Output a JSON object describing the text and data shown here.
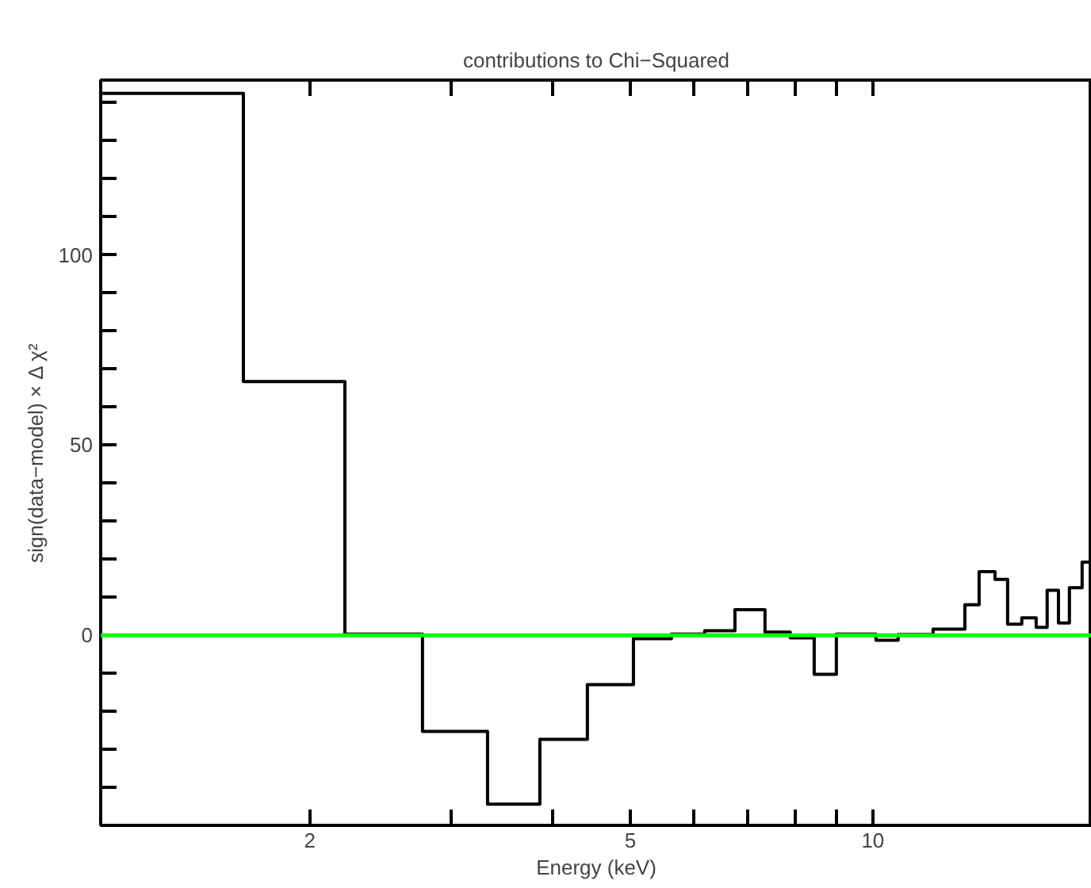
{
  "chart_data": {
    "type": "histogram",
    "title": "contributions to Chi−Squared",
    "xlabel": "Energy (keV)",
    "ylabel": "sign(data−model) × Δ χ²",
    "bins": [
      1.1,
      1.654,
      2.211,
      2.76,
      3.324,
      3.86,
      4.422,
      5.044,
      5.623,
      6.184,
      6.742,
      7.347,
      7.897,
      8.457,
      9.01,
      10.09,
      10.75,
      11.88,
      13.01,
      13.55,
      14.18,
      14.7,
      15.31,
      15.95,
      16.46,
      17.0,
      17.54,
      18.19,
      18.7
    ],
    "values": [
      142.5,
      66.7,
      0.3,
      -25.3,
      -44.4,
      -27.4,
      -13,
      -0.9,
      0.3,
      1.2,
      6.7,
      0.8,
      -0.7,
      -10.3,
      0.3,
      -1.3,
      0.2,
      1.6,
      8,
      16.7,
      14.7,
      2.9,
      4.6,
      2.1,
      11.8,
      3.2,
      12.5,
      19.2
    ],
    "color": "#000000",
    "log": "x",
    "xlim": [
      1.1,
      18.7
    ],
    "ylim": [
      -50,
      146
    ],
    "xticks": [
      2,
      {
        "value": 3,
        "label": null
      },
      {
        "value": 4,
        "label": null
      },
      5,
      {
        "value": 6,
        "label": null
      },
      {
        "value": 7,
        "label": null
      },
      {
        "value": 8,
        "label": null
      },
      {
        "value": 9,
        "label": null
      },
      10
    ],
    "yticks": [
      {
        "value": -40,
        "label": null
      },
      {
        "value": -30,
        "label": null
      },
      {
        "value": -20,
        "label": null
      },
      {
        "value": -10,
        "label": null
      },
      0,
      {
        "value": 10,
        "label": null
      },
      {
        "value": 20,
        "label": null
      },
      {
        "value": 30,
        "label": null
      },
      {
        "value": 40,
        "label": null
      },
      50,
      {
        "value": 60,
        "label": null
      },
      {
        "value": 70,
        "label": null
      },
      {
        "value": 80,
        "label": null
      },
      {
        "value": 90,
        "label": null
      },
      100,
      {
        "value": 110,
        "label": null
      },
      {
        "value": 120,
        "label": null
      },
      {
        "value": 130,
        "label": null
      },
      {
        "value": 140,
        "label": null
      }
    ],
    "ref_lines": [
      {
        "axis": "y",
        "value": 0,
        "color": "#00ff00"
      }
    ],
    "grid": false
  }
}
